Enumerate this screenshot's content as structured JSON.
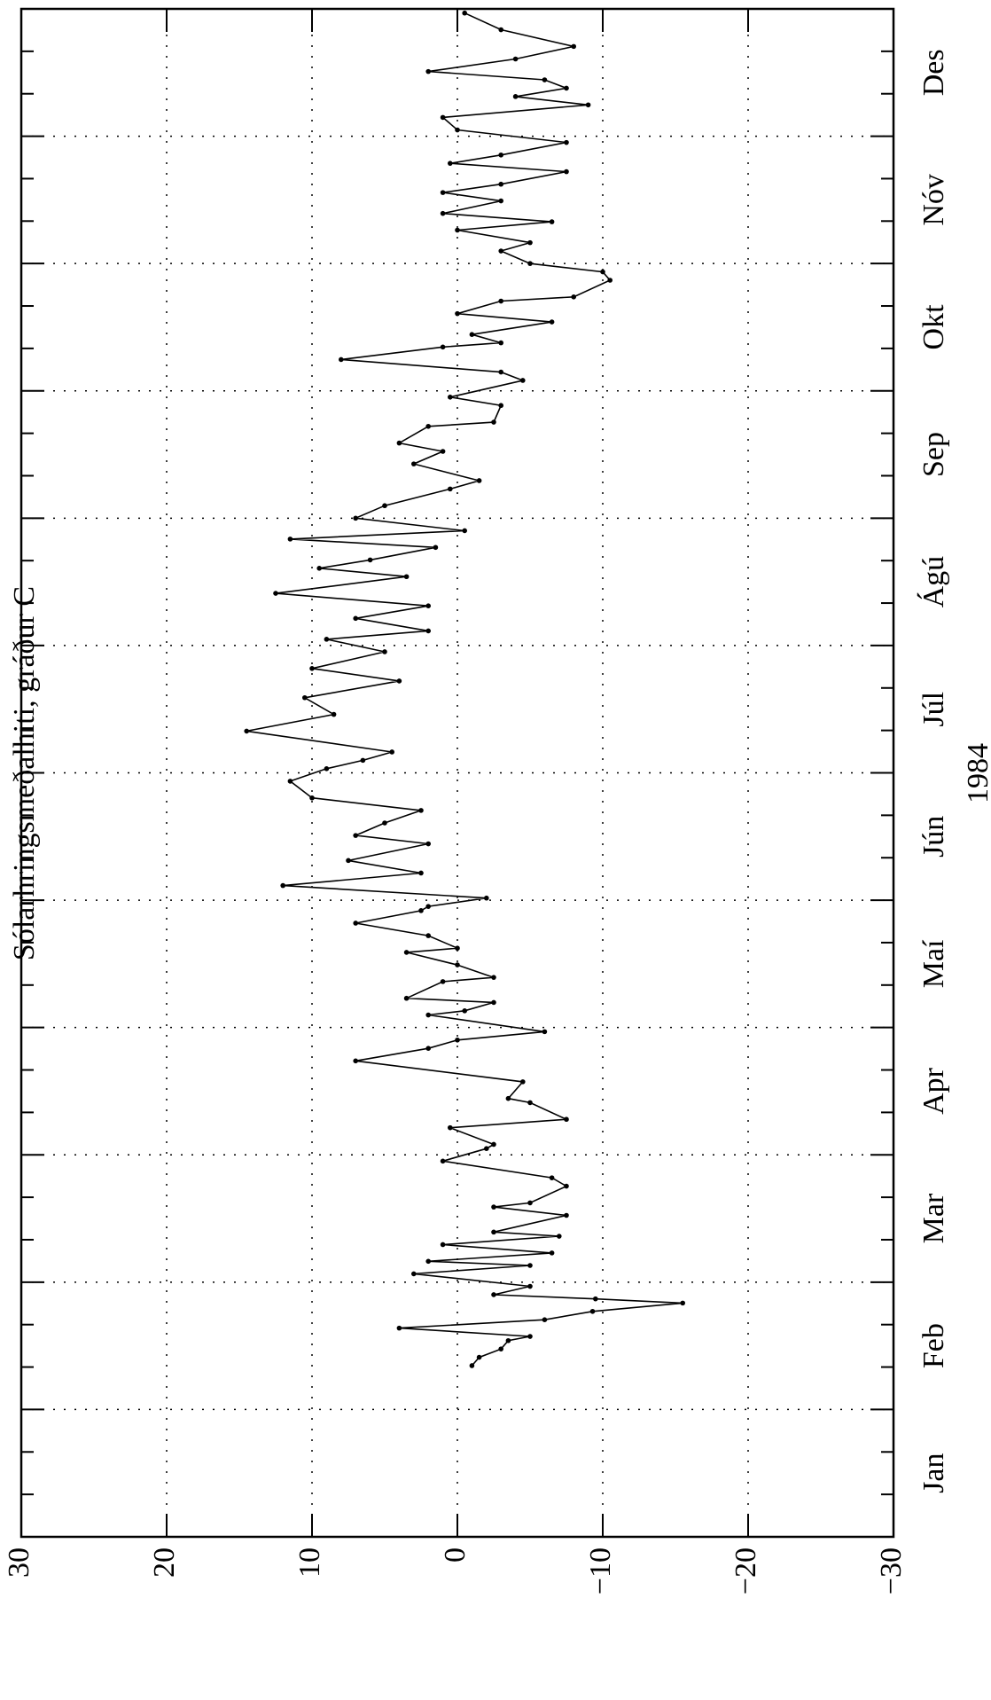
{
  "chart_data": {
    "type": "line",
    "y_label": "Sólarhringsmeðalhiti, gráður C",
    "x_label": "1984",
    "categories": [
      "Jan",
      "Feb",
      "Mar",
      "Apr",
      "Maí",
      "Jún",
      "Júl",
      "Ágú",
      "Sep",
      "Okt",
      "Nóv",
      "Des"
    ],
    "xlim": [
      0,
      366
    ],
    "ylim": [
      -30,
      30
    ],
    "yticks": [
      {
        "value": -30,
        "label": "−30"
      },
      {
        "value": -20,
        "label": "−20"
      },
      {
        "value": -10,
        "label": "−10"
      },
      0,
      10,
      20,
      30
    ],
    "grid": true,
    "rotated": true,
    "series": [
      {
        "color": "#000000",
        "x": [
          41,
          43,
          45,
          47,
          48,
          50,
          52,
          54,
          56,
          57,
          58,
          60,
          63,
          65,
          66,
          68,
          70,
          72,
          73,
          77,
          79,
          80,
          84,
          86,
          90,
          93,
          94,
          98,
          100,
          104,
          105,
          109,
          114,
          117,
          119,
          121,
          125,
          126,
          128,
          129,
          133,
          134,
          137,
          140,
          141,
          144,
          147,
          150,
          151,
          153,
          156,
          159,
          162,
          166,
          168,
          171,
          174,
          177,
          181,
          184,
          186,
          188,
          193,
          197,
          201,
          205,
          208,
          212,
          215,
          217,
          220,
          223,
          226,
          230,
          232,
          234,
          237,
          239,
          241,
          244,
          247,
          251,
          253,
          257,
          260,
          262,
          266,
          267,
          271,
          273,
          277,
          279,
          282,
          285,
          286,
          288,
          291,
          293,
          296,
          297,
          301,
          303,
          305,
          308,
          310,
          313,
          315,
          317,
          320,
          322,
          324,
          327,
          329,
          331,
          334,
          337,
          340,
          343,
          345,
          347,
          349,
          351,
          354,
          357,
          361,
          365
        ],
        "values": [
          -1,
          -1.5,
          -3,
          -3.5,
          -5,
          4,
          -6,
          -9.3,
          -15.5,
          -9.5,
          -2.5,
          -5,
          3,
          -5,
          2,
          -6.5,
          1,
          -7,
          -2.5,
          -7.5,
          -2.5,
          -5,
          -7.5,
          -6.5,
          1,
          -2,
          -2.5,
          0.5,
          -7.5,
          -5,
          -3.5,
          -4.5,
          7,
          2,
          0,
          -6,
          2,
          -0.5,
          -2.5,
          3.5,
          1,
          -2.5,
          0,
          3.5,
          0,
          2,
          7,
          2.5,
          2,
          -2,
          12,
          2.5,
          7.5,
          2,
          7,
          5,
          2.5,
          10,
          11.5,
          9,
          6.5,
          4.5,
          14.5,
          8.5,
          10.5,
          4,
          10,
          5,
          9,
          2,
          7,
          2,
          12.5,
          3.5,
          9.5,
          6,
          1.5,
          11.5,
          -0.5,
          7,
          5,
          0.5,
          -1.5,
          3,
          1,
          4,
          2,
          -2.5,
          -3,
          0.5,
          -4.5,
          -3,
          8,
          1,
          -3,
          -1,
          -6.5,
          0,
          -3,
          -8,
          -10.5,
          -10,
          -5,
          -3,
          -5,
          0,
          -6.5,
          1,
          -3,
          1,
          -3,
          -7.5,
          0.5,
          -3,
          -7.5,
          0,
          1,
          -9,
          -4,
          -7.5,
          -6,
          2,
          -4,
          -8,
          -3,
          -0.5
        ]
      }
    ]
  }
}
